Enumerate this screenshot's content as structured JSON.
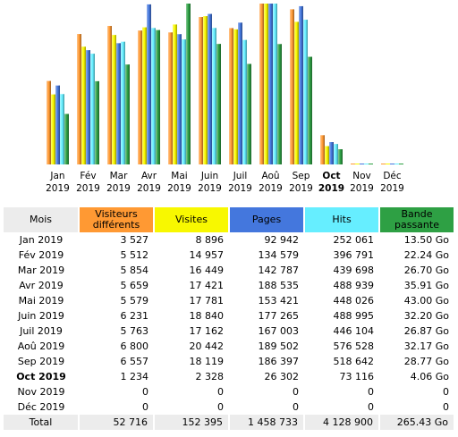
{
  "colors": {
    "visiteurs": "#FF9933",
    "visites": "#F8F800",
    "pages": "#4477DD",
    "hits": "#66EEFF",
    "bande": "#2EA044",
    "header_gray": "#ECECEC"
  },
  "chart_data": {
    "type": "bar",
    "categories": [
      {
        "line1": "Jan",
        "line2": "2019",
        "current": false
      },
      {
        "line1": "Fév",
        "line2": "2019",
        "current": false
      },
      {
        "line1": "Mar",
        "line2": "2019",
        "current": false
      },
      {
        "line1": "Avr",
        "line2": "2019",
        "current": false
      },
      {
        "line1": "Mai",
        "line2": "2019",
        "current": false
      },
      {
        "line1": "Juin",
        "line2": "2019",
        "current": false
      },
      {
        "line1": "Juil",
        "line2": "2019",
        "current": false
      },
      {
        "line1": "Aoû",
        "line2": "2019",
        "current": false
      },
      {
        "line1": "Sep",
        "line2": "2019",
        "current": false
      },
      {
        "line1": "Oct",
        "line2": "2019",
        "current": true
      },
      {
        "line1": "Nov",
        "line2": "2019",
        "current": false
      },
      {
        "line1": "Déc",
        "line2": "2019",
        "current": false
      }
    ],
    "series": [
      {
        "key": "visiteurs",
        "values": [
          3527,
          5512,
          5854,
          5659,
          5579,
          6231,
          5763,
          6800,
          6557,
          1234,
          0,
          0
        ]
      },
      {
        "key": "visites",
        "values": [
          8896,
          14957,
          16449,
          17421,
          17781,
          18840,
          17162,
          20442,
          18119,
          2328,
          0,
          0
        ]
      },
      {
        "key": "pages",
        "values": [
          92942,
          134579,
          142787,
          188535,
          153421,
          177265,
          167003,
          189502,
          186397,
          26302,
          0,
          0
        ]
      },
      {
        "key": "hits",
        "values": [
          252061,
          396791,
          439698,
          488939,
          448026,
          488995,
          446104,
          576528,
          518642,
          73116,
          0,
          0
        ]
      },
      {
        "key": "bande",
        "values": [
          13.5,
          22.24,
          26.7,
          35.91,
          43.0,
          32.2,
          26.87,
          32.17,
          28.77,
          4.06,
          0,
          0
        ]
      }
    ]
  },
  "table": {
    "headers": {
      "mois": "Mois",
      "visiteurs_line1": "Visiteurs",
      "visiteurs_line2": "différents",
      "visites": "Visites",
      "pages": "Pages",
      "hits": "Hits",
      "bande_line1": "Bande",
      "bande_line2": "passante"
    },
    "rows": [
      {
        "mois": "Jan 2019",
        "visiteurs": "3 527",
        "visites": "8 896",
        "pages": "92 942",
        "hits": "252 061",
        "bande": "13.50 Go",
        "current": false
      },
      {
        "mois": "Fév 2019",
        "visiteurs": "5 512",
        "visites": "14 957",
        "pages": "134 579",
        "hits": "396 791",
        "bande": "22.24 Go",
        "current": false
      },
      {
        "mois": "Mar 2019",
        "visiteurs": "5 854",
        "visites": "16 449",
        "pages": "142 787",
        "hits": "439 698",
        "bande": "26.70 Go",
        "current": false
      },
      {
        "mois": "Avr 2019",
        "visiteurs": "5 659",
        "visites": "17 421",
        "pages": "188 535",
        "hits": "488 939",
        "bande": "35.91 Go",
        "current": false
      },
      {
        "mois": "Mai 2019",
        "visiteurs": "5 579",
        "visites": "17 781",
        "pages": "153 421",
        "hits": "448 026",
        "bande": "43.00 Go",
        "current": false
      },
      {
        "mois": "Juin 2019",
        "visiteurs": "6 231",
        "visites": "18 840",
        "pages": "177 265",
        "hits": "488 995",
        "bande": "32.20 Go",
        "current": false
      },
      {
        "mois": "Juil 2019",
        "visiteurs": "5 763",
        "visites": "17 162",
        "pages": "167 003",
        "hits": "446 104",
        "bande": "26.87 Go",
        "current": false
      },
      {
        "mois": "Aoû 2019",
        "visiteurs": "6 800",
        "visites": "20 442",
        "pages": "189 502",
        "hits": "576 528",
        "bande": "32.17 Go",
        "current": false
      },
      {
        "mois": "Sep 2019",
        "visiteurs": "6 557",
        "visites": "18 119",
        "pages": "186 397",
        "hits": "518 642",
        "bande": "28.77 Go",
        "current": false
      },
      {
        "mois": "Oct 2019",
        "visiteurs": "1 234",
        "visites": "2 328",
        "pages": "26 302",
        "hits": "73 116",
        "bande": "4.06 Go",
        "current": true
      },
      {
        "mois": "Nov 2019",
        "visiteurs": "0",
        "visites": "0",
        "pages": "0",
        "hits": "0",
        "bande": "0",
        "current": false
      },
      {
        "mois": "Déc 2019",
        "visiteurs": "0",
        "visites": "0",
        "pages": "0",
        "hits": "0",
        "bande": "0",
        "current": false
      }
    ],
    "total": {
      "mois": "Total",
      "visiteurs": "52 716",
      "visites": "152 395",
      "pages": "1 458 733",
      "hits": "4 128 900",
      "bande": "265.43 Go"
    }
  }
}
